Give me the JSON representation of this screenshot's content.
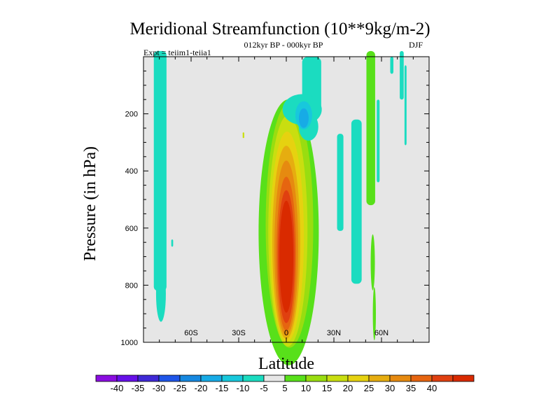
{
  "title": "Meridional Streamfunction (10**9kg/m-2)",
  "subtitle": "012kyr BP - 000kyr BP",
  "left_label": "Expt = teiim1-teiia1",
  "right_label": "DJF",
  "colors": {
    "background": "#e6e6e6",
    "levels": [
      "#8a0de0",
      "#6610e8",
      "#3f29d6",
      "#1f55e8",
      "#1688e0",
      "#17abe6",
      "#18c8dc",
      "#1bdcc0",
      "#e6e6e6",
      "#58e01a",
      "#99dd10",
      "#c9de10",
      "#e6d210",
      "#e6ad10",
      "#e68a10",
      "#e66510",
      "#e04010",
      "#d92a00"
    ]
  },
  "chart_data": {
    "type": "heatmap",
    "xlabel": "Latitude",
    "ylabel": "Pressure (in hPa)",
    "xlim": [
      -90,
      90
    ],
    "ylim": [
      1000,
      0
    ],
    "xticks": [
      -60,
      -30,
      0,
      30,
      60
    ],
    "xtick_labels": [
      "60S",
      "30S",
      "0",
      "30N",
      "60N"
    ],
    "yticks": [
      200,
      400,
      600,
      800,
      1000
    ],
    "ytick_labels": [
      "200",
      "400",
      "600",
      "800",
      "1000"
    ],
    "colorbar_levels": [
      -40,
      -35,
      -30,
      -25,
      -20,
      -15,
      -10,
      -5,
      5,
      10,
      15,
      20,
      25,
      30,
      35,
      40
    ],
    "colorbar_labels": [
      "-40",
      "-35",
      "-30",
      "-25",
      "-20",
      "-15",
      "-10",
      "-5",
      "5",
      "10",
      "15",
      "20",
      "25",
      "30",
      "35",
      "40"
    ],
    "features": [
      {
        "name": "main positive cell",
        "lat_range": [
          -17,
          22
        ],
        "pressure_range": [
          230,
          990
        ],
        "peak_value": 40,
        "peak_lat": 0,
        "peak_pressure": 700
      },
      {
        "name": "negative cell aloft",
        "lat_range": [
          -8,
          24
        ],
        "pressure_range": [
          70,
          290
        ],
        "peak_value": -20,
        "peak_lat": 10,
        "peak_pressure": 210
      },
      {
        "name": "southern high-latitude negative band",
        "lat_range": [
          -83,
          -75
        ],
        "pressure_range": [
          0,
          870
        ],
        "peak_value": -10
      },
      {
        "name": "northern positive band",
        "lat_range": [
          50,
          57
        ],
        "pressure_range": [
          0,
          960
        ],
        "peak_value": 10
      },
      {
        "name": "northern negative patches",
        "lat_range": [
          31,
          48
        ],
        "pressure_range": [
          250,
          800
        ],
        "peak_value": -10
      }
    ]
  }
}
